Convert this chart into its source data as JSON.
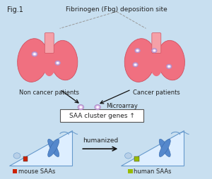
{
  "title": "Fig.1",
  "top_label": "Fibrinogen (Fbg) deposition site",
  "left_lung_label": "Non cancer patients",
  "right_lung_label": "Cancer patients",
  "microarray_label": "Microarray",
  "saa_box_label": "SAA cluster genes ↑",
  "humanized_label": "humanized",
  "mouse_label": "■ mouse SAAs",
  "human_label": "■ human SAAs",
  "bg_color": "#c8dff0",
  "lung_color": "#f07080",
  "lung_dark": "#d05060",
  "trachea_color": "#f5a0a8",
  "dot_outer": "#b090c8",
  "dot_inner": "#d8b8e8",
  "box_border": "#555555",
  "triangle_fill": "#ddeeff",
  "triangle_border": "#6699cc",
  "chrom_color": "#5588cc",
  "arrow_color": "#111111",
  "mouse_marker_color": "#cc2200",
  "human_marker_color": "#99bb00",
  "dashed_color": "#999999",
  "text_color": "#222222"
}
